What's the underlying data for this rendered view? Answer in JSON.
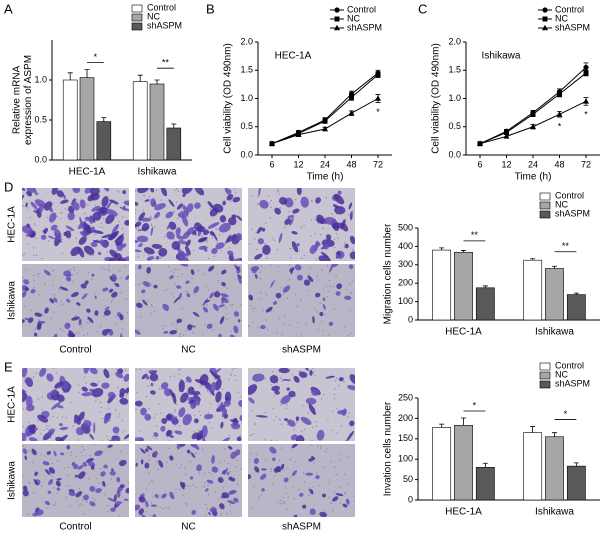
{
  "panel_labels": [
    "A",
    "B",
    "C",
    "D",
    "E"
  ],
  "images": [
    {
      "rows": [
        "HEC-1A",
        "Ishikawa"
      ],
      "cols": [
        "Control",
        "NC",
        "shASPM"
      ]
    },
    {
      "rows": [
        "HEC-1A",
        "Ishikawa"
      ],
      "cols": [
        "Control",
        "NC",
        "shASPM"
      ]
    }
  ],
  "chart_data": [
    {
      "type": "bar",
      "ylabel": "Relative mRNA\nexpression of ASPM",
      "categories": [
        "HEC-1A",
        "Ishikawa"
      ],
      "series": [
        {
          "name": "Control",
          "color": "#ffffff",
          "values": [
            1.0,
            0.98
          ],
          "errors": [
            0.09,
            0.08
          ]
        },
        {
          "name": "NC",
          "color": "#a6a6a6",
          "values": [
            1.03,
            0.95
          ],
          "errors": [
            0.1,
            0.05
          ]
        },
        {
          "name": "shASPM",
          "color": "#595959",
          "values": [
            0.48,
            0.4
          ],
          "errors": [
            0.05,
            0.05
          ]
        }
      ],
      "ylim": [
        0,
        1.5
      ],
      "yticks": [
        {
          "value": 0,
          "label": "0.0"
        },
        0.5,
        {
          "value": 1,
          "label": "1.0"
        }
      ],
      "legend": "upper right",
      "annotations": [
        {
          "text": "*",
          "category": "HEC-1A"
        },
        {
          "text": "**",
          "category": "Ishikawa"
        }
      ]
    },
    {
      "type": "line",
      "title": "HEC-1A",
      "xlabel": "Time (h)",
      "ylabel": "Cell viability (OD 490nm)",
      "categories": [
        "6",
        "12",
        "24",
        "48",
        "72"
      ],
      "series": [
        {
          "name": "Control",
          "color": "#000000",
          "marker": "o",
          "values": [
            0.2,
            0.4,
            0.62,
            1.08,
            1.45
          ],
          "errors": [
            0.02,
            0.03,
            0.04,
            0.05,
            0.05
          ]
        },
        {
          "name": "NC",
          "color": "#000000",
          "marker": "s",
          "values": [
            0.2,
            0.38,
            0.6,
            1.02,
            1.42
          ],
          "errors": [
            0.02,
            0.03,
            0.04,
            0.05,
            0.05
          ]
        },
        {
          "name": "shASPM",
          "color": "#000000",
          "marker": "^",
          "values": [
            0.2,
            0.36,
            0.46,
            0.74,
            1.0
          ],
          "errors": [
            0.02,
            0.03,
            0.03,
            0.04,
            0.07
          ]
        }
      ],
      "ylim": [
        0,
        2
      ],
      "yticks": [
        {
          "value": 0,
          "label": "0.0"
        },
        0.5,
        {
          "value": 1,
          "label": "1.0"
        },
        1.5,
        {
          "value": 2,
          "label": "2.0"
        }
      ],
      "legend": "upper right",
      "annotations": [
        {
          "text": "*",
          "category": "72"
        }
      ]
    },
    {
      "type": "line",
      "title": "Ishikawa",
      "xlabel": "Time (h)",
      "ylabel": "Cell viability (OD 490nm)",
      "categories": [
        "6",
        "12",
        "24",
        "48",
        "72"
      ],
      "series": [
        {
          "name": "Control",
          "color": "#000000",
          "marker": "o",
          "values": [
            0.2,
            0.42,
            0.75,
            1.12,
            1.55
          ],
          "errors": [
            0.02,
            0.03,
            0.04,
            0.05,
            0.08
          ]
        },
        {
          "name": "NC",
          "color": "#000000",
          "marker": "s",
          "values": [
            0.2,
            0.4,
            0.72,
            1.08,
            1.45
          ],
          "errors": [
            0.02,
            0.03,
            0.04,
            0.05,
            0.05
          ]
        },
        {
          "name": "shASPM",
          "color": "#000000",
          "marker": "^",
          "values": [
            0.2,
            0.33,
            0.5,
            0.72,
            0.95
          ],
          "errors": [
            0.02,
            0.03,
            0.04,
            0.05,
            0.07
          ]
        }
      ],
      "ylim": [
        0,
        2
      ],
      "yticks": [
        {
          "value": 0,
          "label": "0.0"
        },
        0.5,
        {
          "value": 1,
          "label": "1.0"
        },
        1.5,
        {
          "value": 2,
          "label": "2.0"
        }
      ],
      "legend": "upper right",
      "annotations": [
        {
          "text": "*",
          "category": "48"
        },
        {
          "text": "*",
          "category": "72"
        }
      ]
    },
    {
      "type": "bar",
      "ylabel": "Migration cells number",
      "categories": [
        "HEC-1A",
        "Ishikawa"
      ],
      "series": [
        {
          "name": "Control",
          "color": "#ffffff",
          "values": [
            380,
            325
          ],
          "errors": [
            12,
            8
          ]
        },
        {
          "name": "NC",
          "color": "#a6a6a6",
          "values": [
            368,
            280
          ],
          "errors": [
            10,
            12
          ]
        },
        {
          "name": "shASPM",
          "color": "#595959",
          "values": [
            175,
            138
          ],
          "errors": [
            10,
            8
          ]
        }
      ],
      "ylim": [
        0,
        500
      ],
      "yticks": [
        0,
        100,
        200,
        300,
        400,
        500
      ],
      "legend": "upper right",
      "annotations": [
        {
          "text": "**",
          "category": "HEC-1A"
        },
        {
          "text": "**",
          "category": "Ishikawa"
        }
      ]
    },
    {
      "type": "bar",
      "ylabel": "Invation cells number",
      "categories": [
        "HEC-1A",
        "Ishikawa"
      ],
      "series": [
        {
          "name": "Control",
          "color": "#ffffff",
          "values": [
            178,
            165
          ],
          "errors": [
            8,
            15
          ]
        },
        {
          "name": "NC",
          "color": "#a6a6a6",
          "values": [
            183,
            155
          ],
          "errors": [
            18,
            10
          ]
        },
        {
          "name": "shASPM",
          "color": "#595959",
          "values": [
            80,
            83
          ],
          "errors": [
            10,
            8
          ]
        }
      ],
      "ylim": [
        0,
        250
      ],
      "yticks": [
        0,
        50,
        100,
        150,
        200,
        250
      ],
      "legend": "upper right",
      "annotations": [
        {
          "text": "*",
          "category": "HEC-1A"
        },
        {
          "text": "*",
          "category": "Ishikawa"
        }
      ]
    }
  ]
}
